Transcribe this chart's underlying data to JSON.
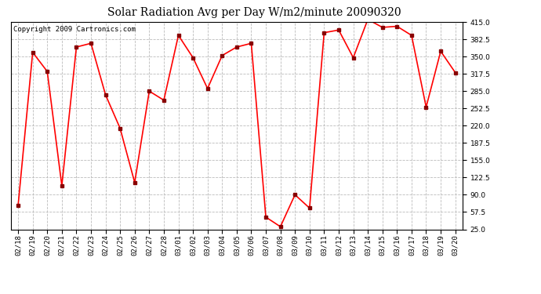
{
  "title": "Solar Radiation Avg per Day W/m2/minute 20090320",
  "copyright": "Copyright 2009 Cartronics.com",
  "dates": [
    "02/18",
    "02/19",
    "02/20",
    "02/21",
    "02/22",
    "02/23",
    "02/24",
    "02/25",
    "02/26",
    "02/27",
    "02/28",
    "03/01",
    "03/02",
    "03/03",
    "03/04",
    "03/05",
    "03/06",
    "03/07",
    "03/08",
    "03/09",
    "03/10",
    "03/11",
    "03/12",
    "03/13",
    "03/14",
    "03/15",
    "03/16",
    "03/17",
    "03/18",
    "03/19",
    "03/20"
  ],
  "values": [
    70,
    358,
    322,
    107,
    368,
    375,
    278,
    215,
    113,
    285,
    268,
    390,
    348,
    290,
    352,
    368,
    375,
    48,
    30,
    90,
    65,
    395,
    400,
    348,
    420,
    405,
    407,
    390,
    255,
    360,
    320
  ],
  "line_color": "#ff0000",
  "marker_color": "#880000",
  "bg_color": "#ffffff",
  "plot_bg_color": "#ffffff",
  "grid_color": "#bbbbbb",
  "ylim": [
    25.0,
    415.0
  ],
  "yticks": [
    25.0,
    57.5,
    90.0,
    122.5,
    155.0,
    187.5,
    220.0,
    252.5,
    285.0,
    317.5,
    350.0,
    382.5,
    415.0
  ],
  "title_fontsize": 10,
  "copyright_fontsize": 6.5,
  "tick_fontsize": 6.5
}
